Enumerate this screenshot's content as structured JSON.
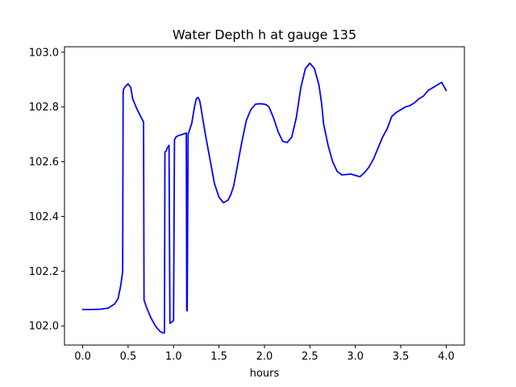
{
  "chart_data": {
    "type": "line",
    "title": "Water Depth h at gauge 135",
    "xlabel": "hours",
    "ylabel": "",
    "xlim": [
      -0.2,
      4.2
    ],
    "ylim": [
      101.93,
      103.02
    ],
    "xticks": [
      0.0,
      0.5,
      1.0,
      1.5,
      2.0,
      2.5,
      3.0,
      3.5,
      4.0
    ],
    "xtick_labels": [
      "0.0",
      "0.5",
      "1.0",
      "1.5",
      "2.0",
      "2.5",
      "3.0",
      "3.5",
      "4.0"
    ],
    "yticks": [
      102.0,
      102.2,
      102.4,
      102.6,
      102.8,
      103.0
    ],
    "ytick_labels": [
      "102.0",
      "102.2",
      "102.4",
      "102.6",
      "102.8",
      "103.0"
    ],
    "grid": false,
    "legend": "none",
    "series": [
      {
        "color": "#0000ff",
        "x": [
          0.0,
          0.1,
          0.2,
          0.28,
          0.35,
          0.39,
          0.42,
          0.44,
          0.445,
          0.45,
          0.47,
          0.5,
          0.53,
          0.55,
          0.6,
          0.67,
          0.675,
          0.7,
          0.75,
          0.8,
          0.85,
          0.88,
          0.9,
          0.905,
          0.92,
          0.93,
          0.95,
          0.96,
          0.965,
          1.0,
          1.01,
          1.02,
          1.025,
          1.05,
          1.1,
          1.14,
          1.145,
          1.15,
          1.16,
          1.165,
          1.17,
          1.2,
          1.23,
          1.25,
          1.27,
          1.29,
          1.31,
          1.35,
          1.4,
          1.45,
          1.5,
          1.55,
          1.6,
          1.63,
          1.66,
          1.7,
          1.75,
          1.8,
          1.85,
          1.9,
          1.95,
          2.0,
          2.02,
          2.05,
          2.1,
          2.15,
          2.2,
          2.25,
          2.3,
          2.35,
          2.4,
          2.45,
          2.5,
          2.55,
          2.6,
          2.63,
          2.65,
          2.7,
          2.75,
          2.8,
          2.85,
          2.9,
          2.95,
          3.0,
          3.05,
          3.1,
          3.15,
          3.2,
          3.25,
          3.3,
          3.35,
          3.4,
          3.45,
          3.5,
          3.55,
          3.6,
          3.65,
          3.7,
          3.75,
          3.8,
          3.85,
          3.9,
          3.95,
          4.0
        ],
        "y": [
          102.06,
          102.06,
          102.061,
          102.065,
          102.08,
          102.1,
          102.15,
          102.2,
          102.85,
          102.865,
          102.875,
          102.885,
          102.87,
          102.83,
          102.79,
          102.745,
          102.095,
          102.07,
          102.03,
          102.0,
          101.98,
          101.975,
          101.975,
          102.635,
          102.64,
          102.65,
          102.66,
          102.01,
          102.01,
          102.02,
          102.68,
          102.685,
          102.69,
          102.695,
          102.7,
          102.705,
          102.06,
          102.055,
          102.7,
          102.705,
          102.71,
          102.74,
          102.8,
          102.83,
          102.835,
          102.82,
          102.78,
          102.7,
          102.61,
          102.52,
          102.47,
          102.45,
          102.46,
          102.48,
          102.51,
          102.58,
          102.67,
          102.75,
          102.79,
          102.81,
          102.812,
          102.81,
          102.808,
          102.8,
          102.76,
          102.71,
          102.675,
          102.67,
          102.69,
          102.76,
          102.87,
          102.94,
          102.96,
          102.94,
          102.88,
          102.81,
          102.74,
          102.66,
          102.6,
          102.565,
          102.552,
          102.553,
          102.555,
          102.55,
          102.545,
          102.56,
          102.58,
          102.61,
          102.65,
          102.69,
          102.72,
          102.765,
          102.78,
          102.79,
          102.8,
          102.805,
          102.815,
          102.83,
          102.84,
          102.86,
          102.87,
          102.88,
          102.89,
          102.86
        ]
      }
    ]
  }
}
